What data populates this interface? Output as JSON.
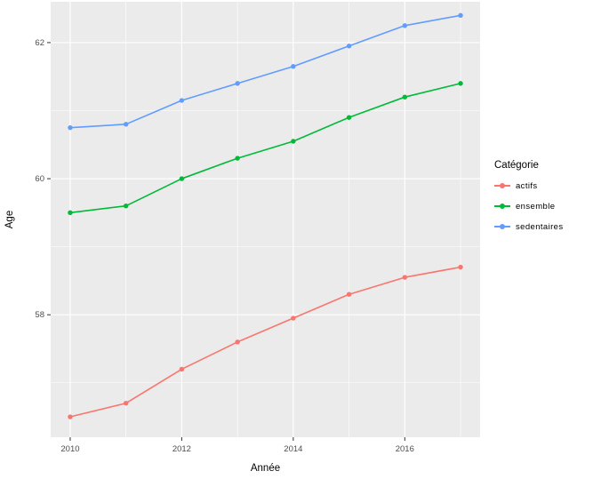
{
  "chart_data": {
    "type": "line",
    "title": "",
    "xlabel": "Année",
    "ylabel": "Age",
    "legend_title": "Catégorie",
    "x": [
      2010,
      2011,
      2012,
      2013,
      2014,
      2015,
      2016,
      2017
    ],
    "series": [
      {
        "name": "actifs",
        "color": "#F8766D",
        "values": [
          56.5,
          56.7,
          57.2,
          57.6,
          57.95,
          58.3,
          58.55,
          58.7
        ]
      },
      {
        "name": "ensemble",
        "color": "#00BA38",
        "values": [
          59.5,
          59.6,
          60.0,
          60.3,
          60.55,
          60.9,
          61.2,
          61.4
        ]
      },
      {
        "name": "sedentaires",
        "color": "#619CFF",
        "values": [
          60.75,
          60.8,
          61.15,
          61.4,
          61.65,
          61.95,
          62.25,
          62.4
        ]
      }
    ],
    "xlim": [
      2009.65,
      2017.35
    ],
    "ylim": [
      56.2,
      62.6
    ],
    "xticks": [
      2010,
      2012,
      2014,
      2016
    ],
    "yticks": [
      58,
      60,
      62
    ],
    "x_minor": [
      2011,
      2013,
      2015,
      2017
    ],
    "y_minor": [
      57,
      59,
      61
    ],
    "legend_position": "right",
    "grid": true,
    "panel_bg": "#EBEBEB",
    "grid_color": "#FFFFFF",
    "tick_color": "#333333",
    "tick_label_color": "#4D4D4D",
    "axis_title_color": "#000000"
  }
}
